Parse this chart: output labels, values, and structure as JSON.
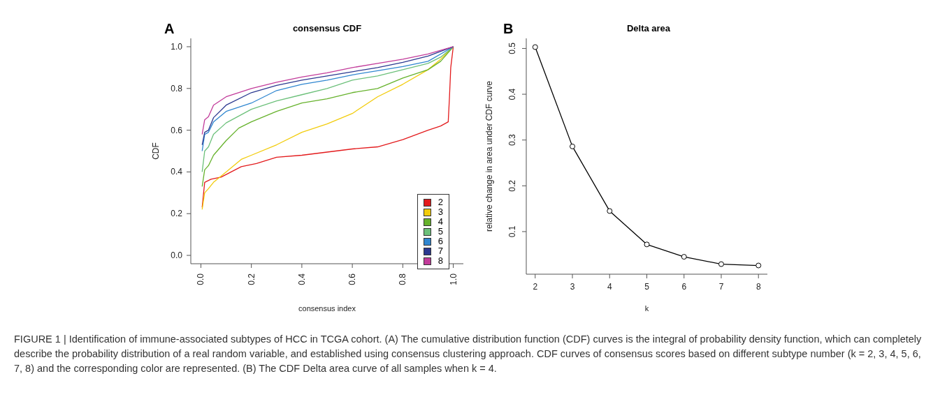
{
  "chart_data": [
    {
      "type": "line",
      "title": "consensus CDF",
      "xlabel": "consensus index",
      "ylabel": "CDF",
      "xlim": [
        -0.04,
        1.04
      ],
      "xticks": [
        {
          "value": 0,
          "label": "0.0"
        },
        0.2,
        0.4,
        0.6,
        0.8,
        {
          "value": 1,
          "label": "1.0"
        }
      ],
      "ylim": [
        -0.04,
        1.04
      ],
      "yticks": [
        {
          "value": 0,
          "label": "0.0"
        },
        0.2,
        0.4,
        0.6,
        0.8,
        {
          "value": 1,
          "label": "1.0"
        }
      ],
      "grid": false,
      "legend": "right",
      "annotations": [
        "A"
      ],
      "series": [
        {
          "name": "2",
          "color": "#e31a1c",
          "x": [
            0.005,
            0.015,
            0.04,
            0.08,
            0.12,
            0.16,
            0.22,
            0.3,
            0.4,
            0.5,
            0.6,
            0.7,
            0.8,
            0.9,
            0.95,
            0.98,
            0.985,
            0.99,
            1.0
          ],
          "values": [
            0.23,
            0.35,
            0.365,
            0.375,
            0.4,
            0.425,
            0.44,
            0.47,
            0.48,
            0.495,
            0.51,
            0.52,
            0.555,
            0.6,
            0.62,
            0.64,
            0.76,
            0.9,
            1.0
          ]
        },
        {
          "name": "3",
          "color": "#f2cc0c",
          "x": [
            0.005,
            0.015,
            0.03,
            0.05,
            0.1,
            0.16,
            0.2,
            0.3,
            0.4,
            0.5,
            0.6,
            0.7,
            0.8,
            0.9,
            0.95,
            1.0
          ],
          "values": [
            0.22,
            0.3,
            0.32,
            0.35,
            0.4,
            0.46,
            0.48,
            0.53,
            0.59,
            0.63,
            0.68,
            0.76,
            0.82,
            0.89,
            0.94,
            1.0
          ]
        },
        {
          "name": "4",
          "color": "#66b22c",
          "x": [
            0.005,
            0.015,
            0.03,
            0.05,
            0.1,
            0.15,
            0.2,
            0.3,
            0.4,
            0.5,
            0.6,
            0.7,
            0.8,
            0.9,
            0.95,
            1.0
          ],
          "values": [
            0.33,
            0.41,
            0.43,
            0.48,
            0.55,
            0.61,
            0.64,
            0.69,
            0.73,
            0.75,
            0.78,
            0.8,
            0.85,
            0.89,
            0.93,
            1.0
          ]
        },
        {
          "name": "5",
          "color": "#6cc07a",
          "x": [
            0.005,
            0.015,
            0.03,
            0.05,
            0.1,
            0.2,
            0.3,
            0.4,
            0.5,
            0.6,
            0.7,
            0.8,
            0.9,
            0.95,
            1.0
          ],
          "values": [
            0.4,
            0.5,
            0.52,
            0.58,
            0.635,
            0.7,
            0.74,
            0.77,
            0.8,
            0.84,
            0.86,
            0.89,
            0.92,
            0.95,
            1.0
          ]
        },
        {
          "name": "6",
          "color": "#2f86d0",
          "x": [
            0.005,
            0.015,
            0.03,
            0.05,
            0.1,
            0.2,
            0.3,
            0.4,
            0.5,
            0.6,
            0.7,
            0.8,
            0.9,
            1.0
          ],
          "values": [
            0.5,
            0.58,
            0.59,
            0.64,
            0.69,
            0.73,
            0.79,
            0.82,
            0.84,
            0.865,
            0.885,
            0.905,
            0.93,
            1.0
          ]
        },
        {
          "name": "7",
          "color": "#2b3990",
          "x": [
            0.005,
            0.015,
            0.03,
            0.05,
            0.1,
            0.2,
            0.3,
            0.4,
            0.5,
            0.6,
            0.7,
            0.8,
            0.9,
            1.0
          ],
          "values": [
            0.53,
            0.59,
            0.6,
            0.66,
            0.72,
            0.78,
            0.815,
            0.84,
            0.86,
            0.88,
            0.9,
            0.925,
            0.955,
            1.0
          ]
        },
        {
          "name": "8",
          "color": "#c23b9a",
          "x": [
            0.005,
            0.015,
            0.03,
            0.05,
            0.1,
            0.2,
            0.3,
            0.4,
            0.5,
            0.6,
            0.7,
            0.8,
            0.9,
            1.0
          ],
          "values": [
            0.58,
            0.65,
            0.665,
            0.72,
            0.76,
            0.8,
            0.83,
            0.855,
            0.875,
            0.9,
            0.92,
            0.94,
            0.965,
            1.0
          ]
        }
      ]
    },
    {
      "type": "line",
      "title": "Delta area",
      "xlabel": "k",
      "ylabel": "relative change in area under CDF curve",
      "xlim": [
        1.76,
        8.24
      ],
      "xticks": [
        2,
        3,
        4,
        5,
        6,
        7,
        8
      ],
      "ylim": [
        0.007,
        0.522
      ],
      "yticks": [
        0.1,
        0.2,
        0.3,
        0.4,
        0.5
      ],
      "grid": false,
      "marker": "circle",
      "annotations": [
        "B",
        "FIGURE 1 | Identification of immune-associated subtypes of HCC in TCGA cohort. (A) The cumulative distribution function (CDF) curves is the integral of probability density function, which can completely describe the probability distribution of a real random variable, and established using consensus clustering approach. CDF curves of consensus scores based on different subtype number (k = 2, 3, 4, 5, 6, 7, 8) and the corresponding color are represented. (B) The CDF Delta area curve of all samples when k = 4."
      ],
      "series": [
        {
          "color": "#000000",
          "x": [
            2,
            3,
            4,
            5,
            6,
            7,
            8
          ],
          "values": [
            0.503,
            0.286,
            0.145,
            0.072,
            0.045,
            0.029,
            0.026
          ]
        }
      ]
    }
  ]
}
